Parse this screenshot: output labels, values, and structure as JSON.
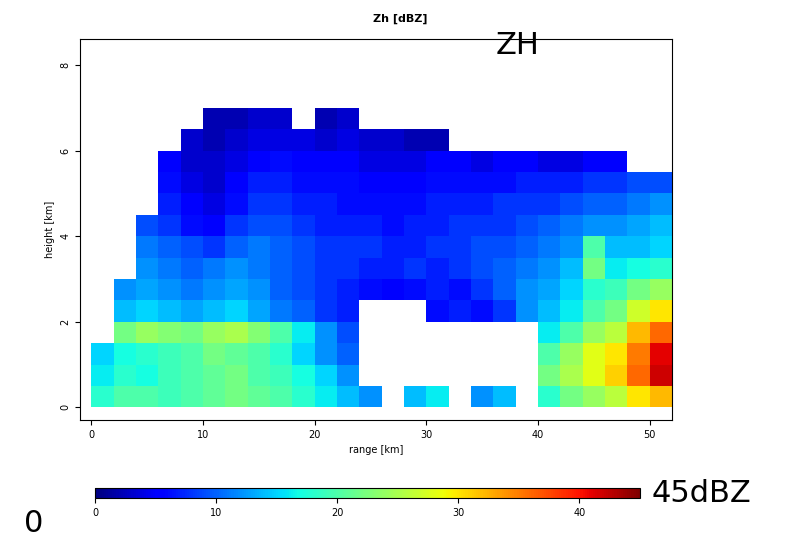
{
  "chart_data": {
    "type": "heatmap",
    "title": "Zh [dBZ]",
    "x_label": "range [km]",
    "y_label": "height [km]",
    "x_edges": [
      0,
      2,
      4,
      6,
      8,
      10,
      12,
      14,
      16,
      18,
      20,
      22,
      24,
      26,
      28,
      30,
      32,
      34,
      36,
      38,
      40,
      42,
      44,
      46,
      48,
      50,
      52
    ],
    "y_edges": [
      0,
      0.5,
      1,
      1.5,
      2,
      2.5,
      3,
      3.5,
      4,
      4.5,
      5,
      5.5,
      6,
      6.5,
      7
    ],
    "cells": [
      [
        18,
        20,
        20,
        19,
        20,
        21,
        22,
        21,
        20,
        18,
        16,
        14,
        12,
        null,
        14,
        16,
        null,
        12,
        14,
        null,
        18,
        22,
        24,
        26,
        30,
        32
      ],
      [
        16,
        18,
        17,
        19,
        20,
        21,
        22,
        20,
        19,
        17,
        15,
        12,
        null,
        null,
        null,
        null,
        null,
        null,
        null,
        null,
        22,
        25,
        28,
        31,
        36,
        42
      ],
      [
        15,
        17,
        18,
        19,
        20,
        22,
        21,
        20,
        18,
        15,
        12,
        10,
        null,
        null,
        null,
        null,
        null,
        null,
        null,
        null,
        20,
        24,
        28,
        30,
        35,
        41
      ],
      [
        null,
        22,
        24,
        23,
        22,
        24,
        25,
        23,
        20,
        16,
        12,
        9,
        null,
        null,
        null,
        null,
        null,
        null,
        null,
        null,
        16,
        20,
        24,
        26,
        32,
        36
      ],
      [
        null,
        14,
        15,
        14,
        13,
        14,
        15,
        13,
        11,
        10,
        8,
        7,
        null,
        null,
        null,
        6,
        7,
        6,
        8,
        12,
        14,
        16,
        20,
        22,
        27,
        30
      ],
      [
        null,
        12,
        13,
        12,
        11,
        12,
        13,
        12,
        10,
        9,
        8,
        7,
        6,
        5,
        6,
        7,
        6,
        8,
        10,
        12,
        13,
        15,
        18,
        19,
        22,
        24
      ],
      [
        null,
        null,
        12,
        11,
        10,
        11,
        12,
        11,
        10,
        9,
        8,
        8,
        7,
        7,
        8,
        7,
        8,
        9,
        10,
        11,
        12,
        14,
        22,
        16,
        17,
        18
      ],
      [
        null,
        null,
        11,
        10,
        9,
        8,
        10,
        11,
        10,
        9,
        8,
        8,
        8,
        7,
        7,
        8,
        8,
        9,
        9,
        10,
        11,
        12,
        20,
        14,
        14,
        15
      ],
      [
        null,
        null,
        9,
        8,
        6,
        5,
        8,
        9,
        9,
        8,
        7,
        7,
        7,
        6,
        7,
        7,
        8,
        8,
        8,
        9,
        10,
        11,
        12,
        12,
        13,
        14
      ],
      [
        null,
        null,
        null,
        7,
        5,
        4,
        6,
        8,
        8,
        7,
        7,
        6,
        6,
        6,
        6,
        7,
        7,
        7,
        8,
        8,
        8,
        9,
        10,
        10,
        11,
        12
      ],
      [
        null,
        null,
        null,
        6,
        4,
        3,
        5,
        7,
        7,
        6,
        6,
        6,
        5,
        5,
        5,
        6,
        6,
        6,
        6,
        7,
        7,
        7,
        8,
        8,
        9,
        9
      ],
      [
        null,
        null,
        null,
        5,
        3,
        3,
        4,
        5,
        6,
        5,
        5,
        5,
        4,
        4,
        4,
        5,
        5,
        4,
        5,
        5,
        4,
        4,
        5,
        5,
        null,
        null
      ],
      [
        null,
        null,
        null,
        null,
        3,
        2,
        3,
        4,
        4,
        4,
        3,
        4,
        3,
        3,
        2,
        2,
        null,
        null,
        null,
        null,
        null,
        null,
        null,
        null,
        null,
        null
      ],
      [
        null,
        null,
        null,
        null,
        null,
        2,
        2,
        3,
        3,
        null,
        2,
        3,
        null,
        null,
        null,
        null,
        null,
        null,
        null,
        null,
        null,
        null,
        null,
        null,
        null,
        null
      ]
    ],
    "xlim": [
      -1,
      52
    ],
    "ylim": [
      -0.3,
      8.6
    ],
    "xticks": [
      0,
      10,
      20,
      30,
      40,
      50
    ],
    "yticks": [
      0,
      2,
      4,
      6,
      8
    ],
    "colorbar": {
      "range": [
        0,
        45
      ],
      "ticks": [
        0,
        10,
        20,
        30,
        40
      ]
    },
    "annotations": [
      {
        "text": "ZH"
      },
      {
        "text": "0"
      },
      {
        "text": "45dBZ"
      }
    ]
  }
}
